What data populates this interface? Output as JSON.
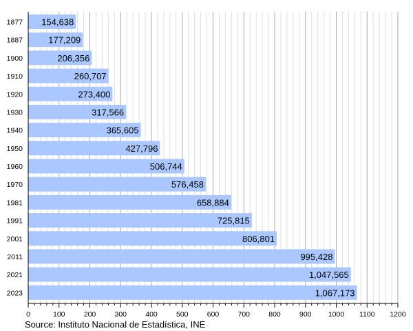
{
  "chart_data": {
    "type": "bar",
    "orientation": "horizontal",
    "categories": [
      "1877",
      "1887",
      "1900",
      "1910",
      "1920",
      "1930",
      "1940",
      "1950",
      "1960",
      "1970",
      "1981",
      "1991",
      "2001",
      "2011",
      "2021",
      "2023"
    ],
    "values": [
      154638,
      177209,
      206356,
      260707,
      273400,
      317566,
      365605,
      427796,
      506744,
      576458,
      658884,
      725815,
      806801,
      995428,
      1047565,
      1067173
    ],
    "data_labels": [
      "154,638",
      "177,209",
      "206,356",
      "260,707",
      "273,400",
      "317,566",
      "365,605",
      "427,796",
      "506,744",
      "576,458",
      "658,884",
      "725,815",
      "806,801",
      "995,428",
      "1,047,565",
      "1,067,173"
    ],
    "xlim": [
      0,
      1200
    ],
    "x_unit_divisor": 1000,
    "x_ticks": [
      "0",
      "100",
      "200",
      "300",
      "400",
      "500",
      "600",
      "700",
      "800",
      "900",
      "1000",
      "1100",
      "1200"
    ],
    "grid": true,
    "bar_color": "#aac8ff",
    "source": "Source: Instituto Nacional de Estadística, INE"
  }
}
